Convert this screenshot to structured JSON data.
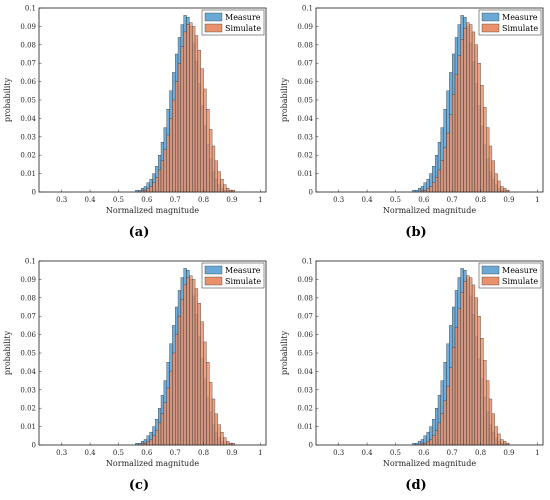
{
  "figure": {
    "x_tick_labels": [
      "0.3",
      "0.4",
      "0.5",
      "0.6",
      "0.7",
      "0.8",
      "0.9",
      "1"
    ],
    "y_tick_labels": [
      "0",
      "0.01",
      "0.02",
      "0.03",
      "0.04",
      "0.05",
      "0.06",
      "0.07",
      "0.08",
      "0.09",
      "0.1"
    ],
    "colors": {
      "measure": "#6aa8d6",
      "simulate": "#e8916c",
      "edge": "#2b2b2b",
      "axis": "#262626"
    }
  },
  "chart_data": [
    {
      "type": "bar",
      "panel": "(a)",
      "caption": "(a)",
      "xlabel": "Normalized magnitude",
      "ylabel": "probability",
      "xlim": [
        0.22,
        1.02
      ],
      "ylim": [
        0,
        0.1
      ],
      "bin_width": 0.01,
      "x": [
        0.22,
        0.23,
        0.24,
        0.25,
        0.26,
        0.27,
        0.28,
        0.29,
        0.3,
        0.31,
        0.32,
        0.33,
        0.34,
        0.35,
        0.36,
        0.37,
        0.38,
        0.39,
        0.4,
        0.41,
        0.42,
        0.43,
        0.44,
        0.45,
        0.46,
        0.47,
        0.48,
        0.49,
        0.5,
        0.51,
        0.52,
        0.53,
        0.54,
        0.55,
        0.56,
        0.57,
        0.58,
        0.59,
        0.6,
        0.61,
        0.62,
        0.63,
        0.64,
        0.65,
        0.66,
        0.67,
        0.68,
        0.69,
        0.7,
        0.71,
        0.72,
        0.73,
        0.74,
        0.75,
        0.76,
        0.77,
        0.78,
        0.79,
        0.8,
        0.81,
        0.82,
        0.83,
        0.84,
        0.85,
        0.86,
        0.87,
        0.88,
        0.89,
        0.9,
        0.91,
        0.92,
        0.93,
        0.94,
        0.95,
        0.96,
        0.97,
        0.98,
        0.99,
        1.0,
        1.01
      ],
      "series": [
        {
          "name": "Measure",
          "values": [
            0,
            0,
            0,
            0,
            0,
            0,
            0,
            0,
            0,
            0,
            0,
            0,
            0,
            0,
            0,
            0,
            0,
            0,
            0,
            0,
            0,
            0,
            0,
            0,
            0,
            0,
            0,
            0,
            0,
            0,
            0,
            0,
            0,
            0,
            0.001,
            0.001,
            0.002,
            0.003,
            0.005,
            0.007,
            0.01,
            0.014,
            0.02,
            0.027,
            0.035,
            0.045,
            0.055,
            0.065,
            0.075,
            0.084,
            0.091,
            0.096,
            0.095,
            0.09,
            0.081,
            0.071,
            0.059,
            0.047,
            0.036,
            0.026,
            0.018,
            0.011,
            0.007,
            0.004,
            0.002,
            0.001,
            0.001,
            0,
            0,
            0,
            0,
            0,
            0,
            0,
            0,
            0,
            0,
            0,
            0,
            0
          ]
        },
        {
          "name": "Simulate",
          "values": [
            0,
            0,
            0,
            0,
            0,
            0,
            0,
            0,
            0,
            0,
            0,
            0,
            0,
            0,
            0,
            0,
            0,
            0,
            0,
            0,
            0,
            0,
            0,
            0,
            0,
            0,
            0,
            0,
            0,
            0,
            0,
            0,
            0,
            0,
            0,
            0,
            0.001,
            0.001,
            0.002,
            0.003,
            0.005,
            0.008,
            0.012,
            0.017,
            0.023,
            0.031,
            0.04,
            0.05,
            0.06,
            0.07,
            0.079,
            0.087,
            0.091,
            0.092,
            0.09,
            0.085,
            0.077,
            0.067,
            0.056,
            0.045,
            0.034,
            0.025,
            0.017,
            0.011,
            0.007,
            0.004,
            0.002,
            0.001,
            0.001,
            0,
            0,
            0,
            0,
            0,
            0,
            0,
            0,
            0,
            0,
            0
          ]
        }
      ]
    },
    {
      "type": "bar",
      "panel": "(b)",
      "caption": "(b)",
      "xlabel": "Normalized magnitude",
      "ylabel": "probability",
      "xlim": [
        0.22,
        1.02
      ],
      "ylim": [
        0,
        0.1
      ],
      "bin_width": 0.01,
      "x": [
        0.22,
        0.23,
        0.24,
        0.25,
        0.26,
        0.27,
        0.28,
        0.29,
        0.3,
        0.31,
        0.32,
        0.33,
        0.34,
        0.35,
        0.36,
        0.37,
        0.38,
        0.39,
        0.4,
        0.41,
        0.42,
        0.43,
        0.44,
        0.45,
        0.46,
        0.47,
        0.48,
        0.49,
        0.5,
        0.51,
        0.52,
        0.53,
        0.54,
        0.55,
        0.56,
        0.57,
        0.58,
        0.59,
        0.6,
        0.61,
        0.62,
        0.63,
        0.64,
        0.65,
        0.66,
        0.67,
        0.68,
        0.69,
        0.7,
        0.71,
        0.72,
        0.73,
        0.74,
        0.75,
        0.76,
        0.77,
        0.78,
        0.79,
        0.8,
        0.81,
        0.82,
        0.83,
        0.84,
        0.85,
        0.86,
        0.87,
        0.88,
        0.89,
        0.9,
        0.91,
        0.92,
        0.93,
        0.94,
        0.95,
        0.96,
        0.97,
        0.98,
        0.99,
        1.0,
        1.01
      ],
      "series": [
        {
          "name": "Measure",
          "values": [
            0,
            0,
            0,
            0,
            0,
            0,
            0,
            0,
            0,
            0,
            0,
            0,
            0,
            0,
            0,
            0,
            0,
            0,
            0,
            0,
            0,
            0,
            0,
            0,
            0,
            0,
            0,
            0,
            0,
            0,
            0,
            0,
            0,
            0,
            0.001,
            0.001,
            0.002,
            0.003,
            0.005,
            0.007,
            0.01,
            0.014,
            0.02,
            0.027,
            0.035,
            0.045,
            0.055,
            0.065,
            0.075,
            0.084,
            0.091,
            0.096,
            0.095,
            0.09,
            0.081,
            0.071,
            0.059,
            0.047,
            0.036,
            0.026,
            0.018,
            0.011,
            0.007,
            0.004,
            0.002,
            0.001,
            0.001,
            0,
            0,
            0,
            0,
            0,
            0,
            0,
            0,
            0,
            0,
            0,
            0,
            0
          ]
        },
        {
          "name": "Simulate",
          "values": [
            0,
            0,
            0,
            0,
            0,
            0,
            0,
            0,
            0,
            0,
            0,
            0,
            0,
            0,
            0,
            0,
            0,
            0,
            0,
            0,
            0,
            0,
            0,
            0,
            0,
            0,
            0,
            0,
            0,
            0,
            0,
            0,
            0,
            0,
            0,
            0,
            0,
            0.001,
            0.001,
            0.002,
            0.003,
            0.005,
            0.008,
            0.012,
            0.017,
            0.024,
            0.032,
            0.042,
            0.053,
            0.064,
            0.074,
            0.083,
            0.089,
            0.092,
            0.091,
            0.087,
            0.08,
            0.07,
            0.058,
            0.046,
            0.035,
            0.025,
            0.017,
            0.01,
            0.006,
            0.003,
            0.002,
            0.001,
            0,
            0,
            0,
            0,
            0,
            0,
            0,
            0,
            0,
            0,
            0,
            0
          ]
        }
      ]
    },
    {
      "type": "bar",
      "panel": "(c)",
      "caption": "(c)",
      "xlabel": "Normalized magnitude",
      "ylabel": "probability",
      "xlim": [
        0.22,
        1.02
      ],
      "ylim": [
        0,
        0.1
      ],
      "bin_width": 0.01,
      "x": [
        0.22,
        0.23,
        0.24,
        0.25,
        0.26,
        0.27,
        0.28,
        0.29,
        0.3,
        0.31,
        0.32,
        0.33,
        0.34,
        0.35,
        0.36,
        0.37,
        0.38,
        0.39,
        0.4,
        0.41,
        0.42,
        0.43,
        0.44,
        0.45,
        0.46,
        0.47,
        0.48,
        0.49,
        0.5,
        0.51,
        0.52,
        0.53,
        0.54,
        0.55,
        0.56,
        0.57,
        0.58,
        0.59,
        0.6,
        0.61,
        0.62,
        0.63,
        0.64,
        0.65,
        0.66,
        0.67,
        0.68,
        0.69,
        0.7,
        0.71,
        0.72,
        0.73,
        0.74,
        0.75,
        0.76,
        0.77,
        0.78,
        0.79,
        0.8,
        0.81,
        0.82,
        0.83,
        0.84,
        0.85,
        0.86,
        0.87,
        0.88,
        0.89,
        0.9,
        0.91,
        0.92,
        0.93,
        0.94,
        0.95,
        0.96,
        0.97,
        0.98,
        0.99,
        1.0,
        1.01
      ],
      "series": [
        {
          "name": "Measure",
          "values": [
            0,
            0,
            0,
            0,
            0,
            0,
            0,
            0,
            0,
            0,
            0,
            0,
            0,
            0,
            0,
            0,
            0,
            0,
            0,
            0,
            0,
            0,
            0,
            0,
            0,
            0,
            0,
            0,
            0,
            0,
            0,
            0,
            0,
            0,
            0.001,
            0.001,
            0.002,
            0.003,
            0.005,
            0.007,
            0.01,
            0.014,
            0.02,
            0.027,
            0.035,
            0.045,
            0.055,
            0.065,
            0.075,
            0.084,
            0.091,
            0.096,
            0.095,
            0.09,
            0.081,
            0.071,
            0.059,
            0.047,
            0.036,
            0.026,
            0.018,
            0.011,
            0.007,
            0.004,
            0.002,
            0.001,
            0.001,
            0,
            0,
            0,
            0,
            0,
            0,
            0,
            0,
            0,
            0,
            0,
            0,
            0
          ]
        },
        {
          "name": "Simulate",
          "values": [
            0,
            0,
            0,
            0,
            0,
            0,
            0,
            0,
            0,
            0,
            0,
            0,
            0,
            0,
            0,
            0,
            0,
            0,
            0,
            0,
            0,
            0,
            0,
            0,
            0,
            0,
            0,
            0,
            0,
            0,
            0,
            0,
            0,
            0,
            0,
            0,
            0.001,
            0.001,
            0.002,
            0.003,
            0.005,
            0.008,
            0.012,
            0.017,
            0.023,
            0.031,
            0.04,
            0.05,
            0.06,
            0.07,
            0.079,
            0.087,
            0.091,
            0.092,
            0.09,
            0.085,
            0.077,
            0.067,
            0.056,
            0.045,
            0.034,
            0.025,
            0.017,
            0.011,
            0.007,
            0.004,
            0.002,
            0.001,
            0.001,
            0,
            0,
            0,
            0,
            0,
            0,
            0,
            0,
            0,
            0,
            0
          ]
        }
      ]
    },
    {
      "type": "bar",
      "panel": "(d)",
      "caption": "(d)",
      "xlabel": "Normalized magnitude",
      "ylabel": "probability",
      "xlim": [
        0.22,
        1.02
      ],
      "ylim": [
        0,
        0.1
      ],
      "bin_width": 0.01,
      "x": [
        0.22,
        0.23,
        0.24,
        0.25,
        0.26,
        0.27,
        0.28,
        0.29,
        0.3,
        0.31,
        0.32,
        0.33,
        0.34,
        0.35,
        0.36,
        0.37,
        0.38,
        0.39,
        0.4,
        0.41,
        0.42,
        0.43,
        0.44,
        0.45,
        0.46,
        0.47,
        0.48,
        0.49,
        0.5,
        0.51,
        0.52,
        0.53,
        0.54,
        0.55,
        0.56,
        0.57,
        0.58,
        0.59,
        0.6,
        0.61,
        0.62,
        0.63,
        0.64,
        0.65,
        0.66,
        0.67,
        0.68,
        0.69,
        0.7,
        0.71,
        0.72,
        0.73,
        0.74,
        0.75,
        0.76,
        0.77,
        0.78,
        0.79,
        0.8,
        0.81,
        0.82,
        0.83,
        0.84,
        0.85,
        0.86,
        0.87,
        0.88,
        0.89,
        0.9,
        0.91,
        0.92,
        0.93,
        0.94,
        0.95,
        0.96,
        0.97,
        0.98,
        0.99,
        1.0,
        1.01
      ],
      "series": [
        {
          "name": "Measure",
          "values": [
            0,
            0,
            0,
            0,
            0,
            0,
            0,
            0,
            0,
            0,
            0,
            0,
            0,
            0,
            0,
            0,
            0,
            0,
            0,
            0,
            0,
            0,
            0,
            0,
            0,
            0,
            0,
            0,
            0,
            0,
            0,
            0,
            0,
            0,
            0.001,
            0.001,
            0.002,
            0.003,
            0.005,
            0.007,
            0.01,
            0.014,
            0.02,
            0.027,
            0.035,
            0.045,
            0.055,
            0.065,
            0.075,
            0.084,
            0.091,
            0.096,
            0.095,
            0.09,
            0.081,
            0.071,
            0.059,
            0.047,
            0.036,
            0.026,
            0.018,
            0.011,
            0.007,
            0.004,
            0.002,
            0.001,
            0.001,
            0,
            0,
            0,
            0,
            0,
            0,
            0,
            0,
            0,
            0,
            0,
            0,
            0
          ]
        },
        {
          "name": "Simulate",
          "values": [
            0,
            0,
            0,
            0,
            0,
            0,
            0,
            0,
            0,
            0,
            0,
            0,
            0,
            0,
            0,
            0,
            0,
            0,
            0,
            0,
            0,
            0,
            0,
            0,
            0,
            0,
            0,
            0,
            0,
            0,
            0,
            0,
            0,
            0,
            0,
            0,
            0,
            0.001,
            0.001,
            0.002,
            0.003,
            0.005,
            0.008,
            0.012,
            0.017,
            0.024,
            0.032,
            0.042,
            0.053,
            0.064,
            0.074,
            0.083,
            0.089,
            0.092,
            0.091,
            0.087,
            0.08,
            0.07,
            0.058,
            0.046,
            0.035,
            0.025,
            0.017,
            0.01,
            0.006,
            0.003,
            0.002,
            0.001,
            0,
            0,
            0,
            0,
            0,
            0,
            0,
            0,
            0,
            0,
            0,
            0
          ]
        }
      ]
    }
  ]
}
